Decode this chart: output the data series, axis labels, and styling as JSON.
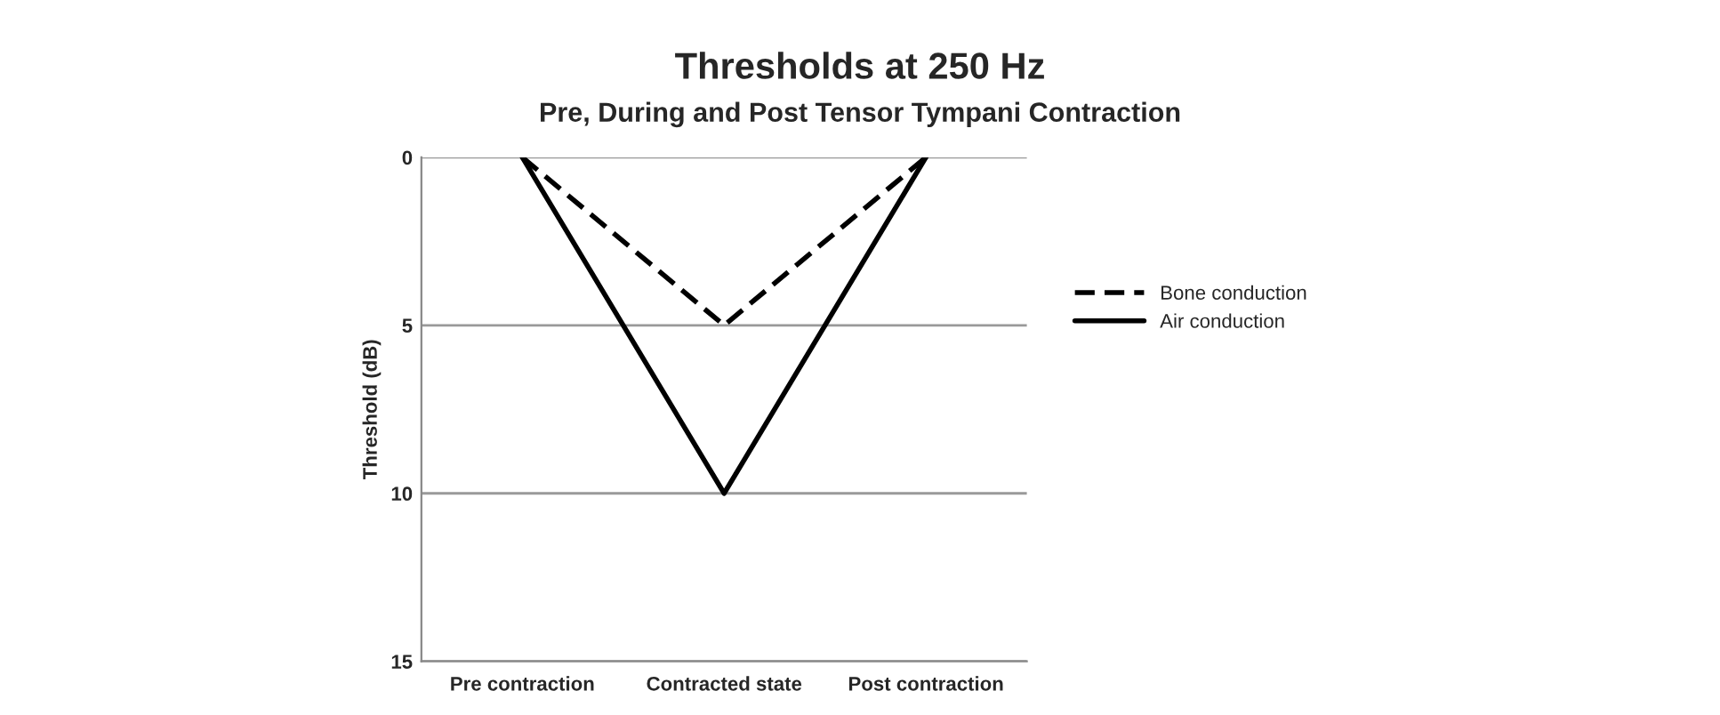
{
  "chart_data": {
    "type": "line",
    "title": "Thresholds at 250 Hz",
    "subtitle": "Pre, During and Post Tensor Tympani Contraction",
    "ylabel": "Threshold (dB)",
    "categories": [
      "Pre contraction",
      "Contracted state",
      "Post contraction"
    ],
    "series": [
      {
        "name": "Bone conduction",
        "color": "#000000",
        "line_style": "dashed",
        "values": [
          0,
          5,
          0
        ]
      },
      {
        "name": "Air conduction",
        "color": "#000000",
        "line_style": "solid",
        "values": [
          0,
          10,
          0
        ]
      }
    ],
    "ylim": [
      15,
      0
    ],
    "yticks": [
      0,
      5,
      10,
      15
    ],
    "grid": "y",
    "legend": "right",
    "marker": "none"
  }
}
